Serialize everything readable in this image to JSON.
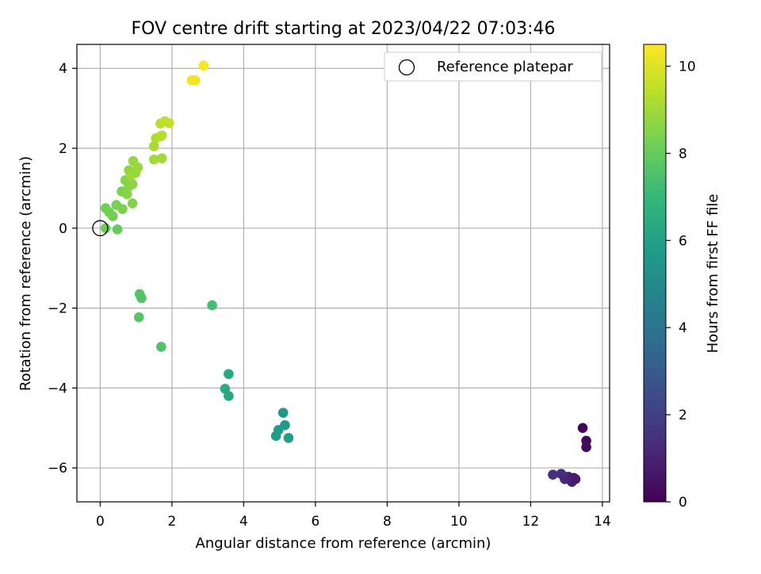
{
  "chart_data": {
    "type": "scatter",
    "title": "FOV centre drift starting at 2023/04/22 07:03:46",
    "xlabel": "Angular distance from reference (arcmin)",
    "ylabel": "Rotation from reference (arcmin)",
    "xlim": [
      -0.65,
      14.2
    ],
    "ylim": [
      -6.85,
      4.6
    ],
    "xticks": [
      0,
      2,
      4,
      6,
      8,
      10,
      12,
      14
    ],
    "yticks": [
      -6,
      -4,
      -2,
      0,
      2,
      4
    ],
    "grid": true,
    "legend": {
      "placement": "top-right",
      "entries": [
        "Reference platepar"
      ]
    },
    "reference_point": {
      "x": 0,
      "y": 0
    },
    "colorbar": {
      "label": "Hours from first FF file",
      "colormap": "viridis",
      "range": [
        0,
        10.5
      ],
      "ticks": [
        0,
        2,
        4,
        6,
        8,
        10
      ]
    },
    "colormap_stops": [
      "#440154",
      "#482878",
      "#3e4989",
      "#31688e",
      "#26828e",
      "#1f9e89",
      "#35b779",
      "#6ece58",
      "#b5de2b",
      "#fde725"
    ],
    "points": [
      {
        "x": 13.45,
        "y": -5.0,
        "c": 0.1
      },
      {
        "x": 13.55,
        "y": -5.32,
        "c": 0.2
      },
      {
        "x": 13.55,
        "y": -5.48,
        "c": 0.3
      },
      {
        "x": 13.2,
        "y": -6.25,
        "c": 0.6
      },
      {
        "x": 13.1,
        "y": -6.3,
        "c": 0.7
      },
      {
        "x": 13.15,
        "y": -6.35,
        "c": 0.9
      },
      {
        "x": 13.05,
        "y": -6.22,
        "c": 1.0
      },
      {
        "x": 12.95,
        "y": -6.28,
        "c": 1.1
      },
      {
        "x": 12.85,
        "y": -6.15,
        "c": 1.3
      },
      {
        "x": 12.62,
        "y": -6.17,
        "c": 1.4
      },
      {
        "x": 13.25,
        "y": -6.28,
        "c": 0.8
      },
      {
        "x": 5.1,
        "y": -4.62,
        "c": 5.6
      },
      {
        "x": 5.15,
        "y": -4.93,
        "c": 5.7
      },
      {
        "x": 4.97,
        "y": -5.05,
        "c": 5.8
      },
      {
        "x": 4.9,
        "y": -5.2,
        "c": 5.8
      },
      {
        "x": 5.25,
        "y": -5.25,
        "c": 5.9
      },
      {
        "x": 3.58,
        "y": -3.65,
        "c": 6.3
      },
      {
        "x": 3.48,
        "y": -4.02,
        "c": 6.4
      },
      {
        "x": 3.58,
        "y": -4.2,
        "c": 6.3
      },
      {
        "x": 3.12,
        "y": -1.93,
        "c": 7.3
      },
      {
        "x": 1.7,
        "y": -2.97,
        "c": 7.6
      },
      {
        "x": 1.1,
        "y": -1.65,
        "c": 7.6
      },
      {
        "x": 1.15,
        "y": -1.75,
        "c": 7.6
      },
      {
        "x": 1.08,
        "y": -2.23,
        "c": 7.7
      },
      {
        "x": 0.48,
        "y": -0.03,
        "c": 8.0
      },
      {
        "x": 0.15,
        "y": 0.0,
        "c": 8.1
      },
      {
        "x": 0.35,
        "y": 0.3,
        "c": 8.2
      },
      {
        "x": 0.15,
        "y": 0.5,
        "c": 8.2
      },
      {
        "x": 0.25,
        "y": 0.4,
        "c": 8.3
      },
      {
        "x": 0.45,
        "y": 0.58,
        "c": 8.3
      },
      {
        "x": 0.62,
        "y": 0.48,
        "c": 8.4
      },
      {
        "x": 0.6,
        "y": 0.92,
        "c": 8.4
      },
      {
        "x": 0.9,
        "y": 0.62,
        "c": 8.5
      },
      {
        "x": 0.7,
        "y": 1.2,
        "c": 8.5
      },
      {
        "x": 0.8,
        "y": 1.05,
        "c": 8.6
      },
      {
        "x": 0.75,
        "y": 0.85,
        "c": 8.6
      },
      {
        "x": 0.9,
        "y": 1.1,
        "c": 8.7
      },
      {
        "x": 0.8,
        "y": 1.45,
        "c": 8.7
      },
      {
        "x": 0.92,
        "y": 1.68,
        "c": 8.8
      },
      {
        "x": 0.98,
        "y": 1.38,
        "c": 8.8
      },
      {
        "x": 1.05,
        "y": 1.52,
        "c": 8.9
      },
      {
        "x": 0.85,
        "y": 1.3,
        "c": 8.9
      },
      {
        "x": 1.5,
        "y": 1.72,
        "c": 9.0
      },
      {
        "x": 1.72,
        "y": 1.75,
        "c": 9.0
      },
      {
        "x": 1.5,
        "y": 2.05,
        "c": 9.1
      },
      {
        "x": 1.55,
        "y": 2.25,
        "c": 9.2
      },
      {
        "x": 1.68,
        "y": 2.3,
        "c": 9.3
      },
      {
        "x": 1.72,
        "y": 2.32,
        "c": 9.3
      },
      {
        "x": 1.68,
        "y": 2.62,
        "c": 9.4
      },
      {
        "x": 1.8,
        "y": 2.68,
        "c": 9.5
      },
      {
        "x": 1.92,
        "y": 2.63,
        "c": 9.5
      },
      {
        "x": 2.55,
        "y": 3.7,
        "c": 10.2
      },
      {
        "x": 2.65,
        "y": 3.7,
        "c": 10.3
      },
      {
        "x": 2.88,
        "y": 4.07,
        "c": 10.4
      }
    ]
  }
}
